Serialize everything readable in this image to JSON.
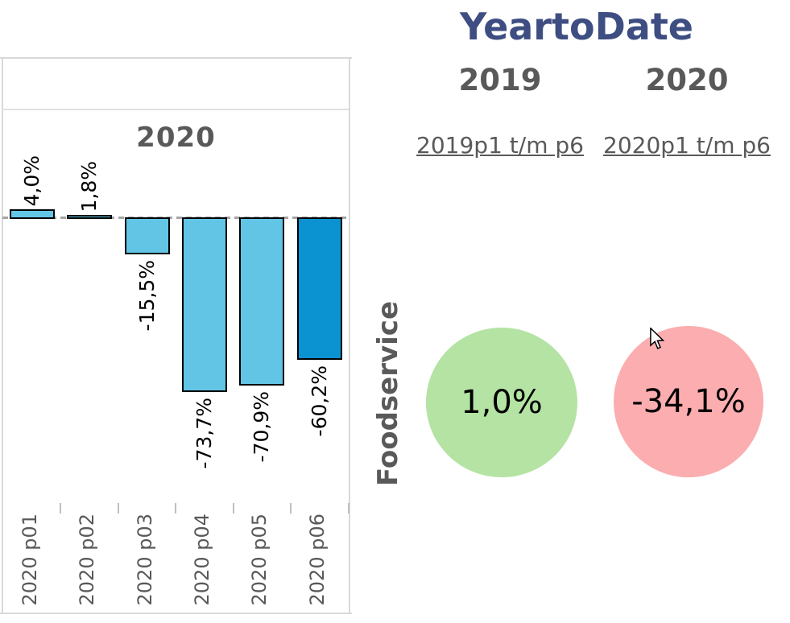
{
  "period_chart": {
    "title": "2020"
  },
  "ytd": {
    "title": "YeartoDate",
    "row_label": "Foodservice",
    "columns": [
      {
        "year": "2019",
        "period_link": "2019p1 t/m p6",
        "value": "1,0%",
        "circle_color": "#b4e3a4"
      },
      {
        "year": "2020",
        "period_link": "2020p1 t/m p6",
        "value": "-34,1%",
        "circle_color": "#fbadaf"
      }
    ]
  },
  "chart_data": [
    {
      "type": "bar",
      "title": "2020",
      "categories": [
        "2020 p01",
        "2020 p02",
        "2020 p03",
        "2020 p04",
        "2020 p05",
        "2020 p06"
      ],
      "values": [
        4.0,
        1.8,
        -15.5,
        -73.7,
        -70.9,
        -60.2
      ],
      "data_labels": [
        "4,0%",
        "1,8%",
        "-15,5%",
        "-73,7%",
        "-70,9%",
        "-60,2%"
      ],
      "bar_colors": [
        "#63c5e6",
        "#63c5e6",
        "#63c5e6",
        "#63c5e6",
        "#63c5e6",
        "#0b93d1"
      ],
      "bar_border_color": "#000000",
      "xlabel": "",
      "ylabel": "",
      "ylim": [
        50,
        -125
      ],
      "grid": false,
      "baseline": "dashed gray zero line",
      "legend": "none"
    },
    {
      "type": "bar",
      "title": "YeartoDate Foodservice",
      "categories": [
        "2019p1 t/m p6",
        "2020p1 t/m p6"
      ],
      "values": [
        1.0,
        -34.1
      ],
      "data_labels": [
        "1,0%",
        "-34,1%"
      ],
      "marker_colors": [
        "#b4e3a4",
        "#fbadaf"
      ],
      "note": "values shown as colored KPI circles"
    }
  ],
  "colors": {
    "bar_light_blue": "#63c5e6",
    "bar_dark_blue": "#0b93d1",
    "positive_circle_green": "#b4e3a4",
    "negative_circle_red": "#fbadaf",
    "heading_gray": "#595959",
    "title_navy": "#3e4e82",
    "zero_line_gray": "#a6a6a6",
    "frame_gray": "#d9d9d9"
  }
}
